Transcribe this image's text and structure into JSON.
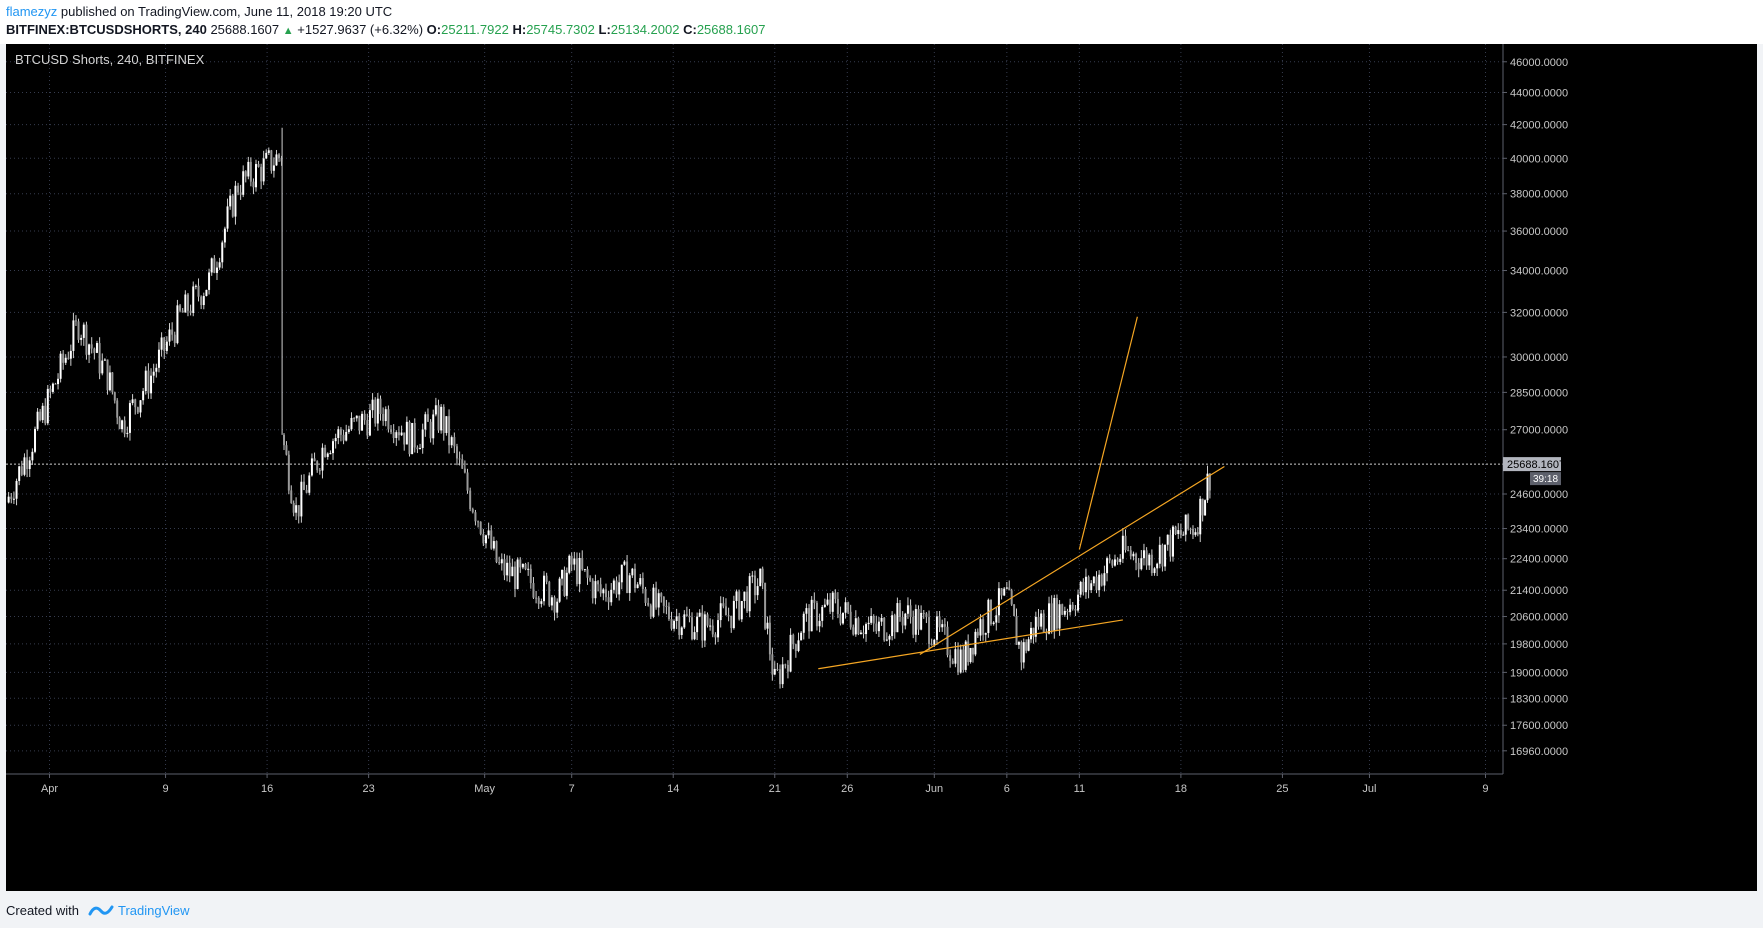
{
  "header": {
    "author": "flamezyz",
    "published_text": "published on TradingView.com, June 11, 2018 19:20 UTC",
    "symbol": "BITFINEX:BTCUSDSHORTS, 240",
    "last": "25688.1607",
    "change": "+1527.9637 (+6.32%)",
    "open_label": "O:",
    "open": "25211.7922",
    "high_label": "H:",
    "high": "25745.7302",
    "low_label": "L:",
    "low": "25134.2002",
    "close_label": "C:",
    "close": "25688.1607",
    "up_color": "#26a14f"
  },
  "chart_title": "BTCUSD Shorts, 240, BITFINEX",
  "chart_data": {
    "type": "candlestick",
    "title": "BTCUSD Shorts, 240, BITFINEX",
    "y_tick_labels": [
      "46000.0000",
      "44000.0000",
      "42000.0000",
      "40000.0000",
      "38000.0000",
      "36000.0000",
      "34000.0000",
      "32000.0000",
      "30000.0000",
      "28500.0000",
      "27000.0000",
      "24600.0000",
      "23400.0000",
      "22400.0000",
      "21400.0000",
      "20600.0000",
      "19800.0000",
      "19000.0000",
      "18300.0000",
      "17600.0000",
      "16960.0000"
    ],
    "x_tick_labels": [
      "Apr",
      "9",
      "16",
      "23",
      "May",
      "7",
      "14",
      "21",
      "26",
      "Jun",
      "6",
      "11",
      "18",
      "25",
      "Jul",
      "9"
    ],
    "x_range": [
      "2018-03-29",
      "2018-07-10"
    ],
    "y_scale": "log",
    "ylim": [
      16400,
      47200
    ],
    "grid": true,
    "last_price_label": "25688.1607",
    "countdown_label": "39:18",
    "price_path": [
      {
        "date": "2018-03-29",
        "value": 24300
      },
      {
        "date": "2018-03-31",
        "value": 26800
      },
      {
        "date": "2018-04-03",
        "value": 31500
      },
      {
        "date": "2018-04-05",
        "value": 29200
      },
      {
        "date": "2018-04-06",
        "value": 27200
      },
      {
        "date": "2018-04-08",
        "value": 29200
      },
      {
        "date": "2018-04-10",
        "value": 31800
      },
      {
        "date": "2018-04-12",
        "value": 33500
      },
      {
        "date": "2018-04-14",
        "value": 38500
      },
      {
        "date": "2018-04-17",
        "value": 40200
      },
      {
        "date": "2018-04-17",
        "value": 26800
      },
      {
        "date": "2018-04-18",
        "value": 24000
      },
      {
        "date": "2018-04-20",
        "value": 26500
      },
      {
        "date": "2018-04-24",
        "value": 27800
      },
      {
        "date": "2018-04-26",
        "value": 26600
      },
      {
        "date": "2018-04-28",
        "value": 27500
      },
      {
        "date": "2018-04-30",
        "value": 24500
      },
      {
        "date": "2018-05-02",
        "value": 22100
      },
      {
        "date": "2018-05-04",
        "value": 21700
      },
      {
        "date": "2018-05-06",
        "value": 21200
      },
      {
        "date": "2018-05-07",
        "value": 22200
      },
      {
        "date": "2018-05-09",
        "value": 21300
      },
      {
        "date": "2018-05-11",
        "value": 21900
      },
      {
        "date": "2018-05-13",
        "value": 20800
      },
      {
        "date": "2018-05-16",
        "value": 20300
      },
      {
        "date": "2018-05-18",
        "value": 20700
      },
      {
        "date": "2018-05-20",
        "value": 21700
      },
      {
        "date": "2018-05-21",
        "value": 18700
      },
      {
        "date": "2018-05-23",
        "value": 20500
      },
      {
        "date": "2018-05-25",
        "value": 20900
      },
      {
        "date": "2018-05-28",
        "value": 20200
      },
      {
        "date": "2018-05-30",
        "value": 20700
      },
      {
        "date": "2018-06-01",
        "value": 20200
      },
      {
        "date": "2018-06-03",
        "value": 19300
      },
      {
        "date": "2018-06-04",
        "value": 20300
      },
      {
        "date": "2018-06-06",
        "value": 21200
      },
      {
        "date": "2018-06-07",
        "value": 19500
      },
      {
        "date": "2018-06-08",
        "value": 20400
      },
      {
        "date": "2018-06-10",
        "value": 20900
      },
      {
        "date": "2018-06-12",
        "value": 21700
      },
      {
        "date": "2018-06-14",
        "value": 22600
      },
      {
        "date": "2018-06-16",
        "value": 22400
      },
      {
        "date": "2018-06-18",
        "value": 23200
      },
      {
        "date": "2018-06-19",
        "value": 23500
      },
      {
        "date": "2018-06-20",
        "value": 25300
      }
    ],
    "trendlines": [
      {
        "color": "#f5a623",
        "points": [
          {
            "date": "2018-05-24",
            "value": 19100
          },
          {
            "date": "2018-06-14",
            "value": 20500
          }
        ]
      },
      {
        "color": "#f5a623",
        "points": [
          {
            "date": "2018-05-31",
            "value": 19500
          },
          {
            "date": "2018-06-21",
            "value": 25600
          }
        ]
      },
      {
        "color": "#f5a623",
        "points": [
          {
            "date": "2018-06-11",
            "value": 22700
          },
          {
            "date": "2018-06-15",
            "value": 31800
          }
        ]
      }
    ]
  },
  "footer": {
    "created_with": "Created with",
    "brand": "TradingView"
  },
  "colors": {
    "background": "#000000",
    "candle": "#d0d0d0",
    "grid": "#363c4e",
    "axis_text": "#c8c8c8",
    "price_label_bg": "#b2b5be",
    "trendline": "#f5a623"
  }
}
